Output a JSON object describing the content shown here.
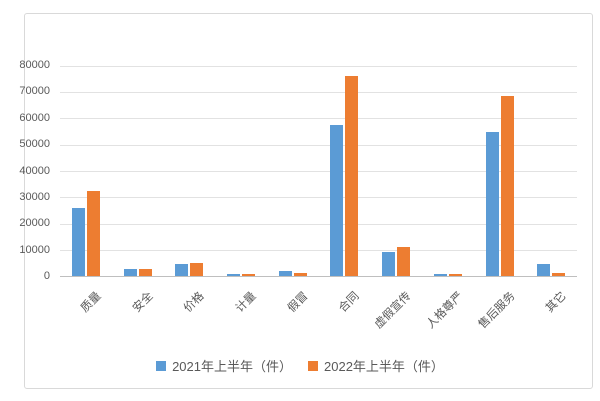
{
  "colors": {
    "series_2021": "#5B9BD5",
    "series_2022": "#ED7D31",
    "gridline": "#e2e2e2",
    "axis_line": "#bfbfbf",
    "axis_text": "#595959",
    "panel_border": "#d9d9d9"
  },
  "legend": {
    "items": [
      {
        "label": "2021年上半年（件）",
        "color": "#5B9BD5"
      },
      {
        "label": "2022年上半年（件）",
        "color": "#ED7D31"
      }
    ]
  },
  "chart_data": {
    "type": "bar",
    "title": "",
    "xlabel": "",
    "ylabel": "",
    "categories": [
      "质量",
      "安全",
      "价格",
      "计量",
      "假冒",
      "合同",
      "虚假宣传",
      "人格尊严",
      "售后服务",
      "其它"
    ],
    "series": [
      {
        "name": "2021年上半年（件）",
        "color": "#5B9BD5",
        "values": [
          26000,
          3000,
          4600,
          800,
          2000,
          57500,
          9300,
          800,
          55000,
          4800
        ]
      },
      {
        "name": "2022年上半年（件）",
        "color": "#ED7D31",
        "values": [
          32500,
          2700,
          5100,
          800,
          1300,
          76000,
          11300,
          800,
          68500,
          1300
        ]
      }
    ],
    "ylim": [
      0,
      80000
    ],
    "y_tick_step": 10000,
    "y_tick_labels": [
      "0",
      "10000",
      "20000",
      "30000",
      "40000",
      "50000",
      "60000",
      "70000",
      "80000"
    ],
    "grid": true,
    "legend_position": "bottom",
    "x_label_rotation_deg": 45
  }
}
